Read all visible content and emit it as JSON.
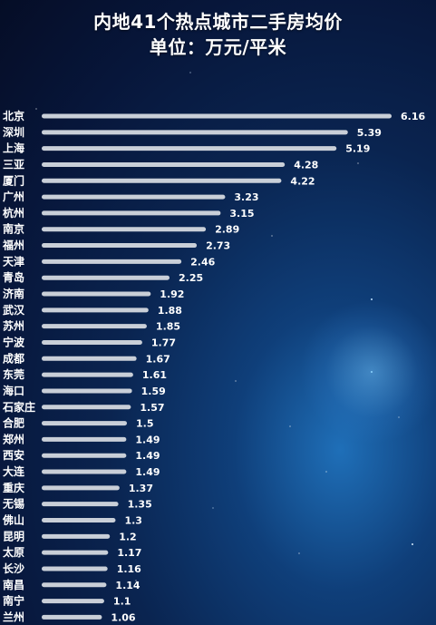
{
  "header": {
    "title": "内地41个热点城市二手房均价",
    "subtitle": "单位：万元/平米"
  },
  "colors": {
    "bar": "#c9cfd8",
    "text": "#ffffff"
  },
  "chart_data": {
    "type": "bar",
    "orientation": "horizontal",
    "title": "内地41个热点城市二手房均价",
    "subtitle": "单位：万元/平米",
    "categories": [
      "北京",
      "深圳",
      "上海",
      "三亚",
      "厦门",
      "广州",
      "杭州",
      "南京",
      "福州",
      "天津",
      "青岛",
      "济南",
      "武汉",
      "苏州",
      "宁波",
      "成都",
      "东莞",
      "海口",
      "石家庄",
      "合肥",
      "郑州",
      "西安",
      "大连",
      "重庆",
      "无锡",
      "佛山",
      "昆明",
      "太原",
      "长沙",
      "南昌",
      "南宁",
      "兰州"
    ],
    "values": [
      6.16,
      5.39,
      5.19,
      4.28,
      4.22,
      3.23,
      3.15,
      2.89,
      2.73,
      2.46,
      2.25,
      1.92,
      1.88,
      1.85,
      1.77,
      1.67,
      1.61,
      1.59,
      1.57,
      1.5,
      1.49,
      1.49,
      1.49,
      1.37,
      1.35,
      1.3,
      1.2,
      1.17,
      1.16,
      1.14,
      1.1,
      1.06
    ],
    "value_labels": [
      "6.16",
      "5.39",
      "5.19",
      "4.28",
      "4.22",
      "3.23",
      "3.15",
      "2.89",
      "2.73",
      "2.46",
      "2.25",
      "1.92",
      "1.88",
      "1.85",
      "1.77",
      "1.67",
      "1.61",
      "1.59",
      "1.57",
      "1.5",
      "1.49",
      "1.49",
      "1.49",
      "1.37",
      "1.35",
      "1.3",
      "1.2",
      "1.17",
      "1.16",
      "1.14",
      "1.1",
      "1.06"
    ],
    "xlim": [
      0,
      6.16
    ],
    "grid": false,
    "legend": "none"
  }
}
